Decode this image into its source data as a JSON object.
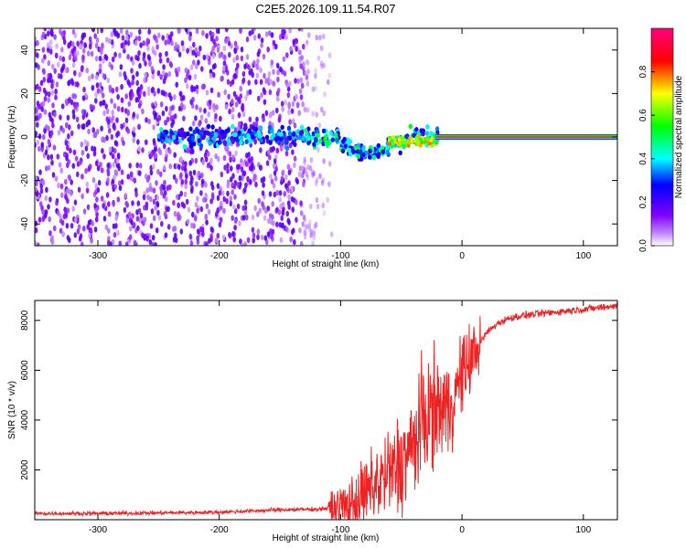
{
  "chart_data": [
    {
      "type": "heatmap",
      "title": "C2E5.2026.109.11.54.R07",
      "xlabel": "Height of straight line (km)",
      "ylabel": "Frequency (Hz)",
      "xlim": [
        -352,
        128
      ],
      "ylim": [
        -50,
        50
      ],
      "xticks": [
        -300,
        -200,
        -100,
        0,
        100
      ],
      "xtick_labels": [
        "-300",
        "-200",
        "-100",
        "0",
        "100"
      ],
      "yticks": [
        -40,
        -20,
        0,
        20,
        40
      ],
      "ytick_labels": [
        "-40",
        "-20",
        "0",
        "20",
        "40"
      ],
      "colorbar": {
        "label": "Normalized spectral amplitude",
        "range": [
          0,
          1
        ],
        "ticks": [
          0.0,
          0.2,
          0.4,
          0.6,
          0.8
        ],
        "tick_labels": [
          "0.0",
          "0.2",
          "0.4",
          "0.6",
          "0.8"
        ],
        "colormap": [
          "#ffffff",
          "#8000ff",
          "#0000ff",
          "#00ffff",
          "#00ff00",
          "#ffff00",
          "#ff0000",
          "#ff0080"
        ]
      },
      "features": {
        "noise_region_x": [
          -352,
          -105
        ],
        "strong_line_x": [
          -22,
          128
        ],
        "strong_line_freq": 0
      }
    },
    {
      "type": "line",
      "xlabel": "Height of straight line (km)",
      "ylabel": "SNR (10 * v/v)",
      "xlim": [
        -352,
        128
      ],
      "ylim": [
        0,
        8800
      ],
      "xticks": [
        -300,
        -200,
        -100,
        0,
        100
      ],
      "xtick_labels": [
        "-300",
        "-200",
        "-100",
        "0",
        "100"
      ],
      "yticks": [
        2000,
        4000,
        6000,
        8000
      ],
      "ytick_labels": [
        "2000",
        "4000",
        "6000",
        "8000"
      ],
      "series": [
        {
          "name": "SNR",
          "color": "#ee2222",
          "x": [
            -352,
            -300,
            -250,
            -200,
            -150,
            -120,
            -100,
            -90,
            -80,
            -70,
            -60,
            -50,
            -40,
            -30,
            -20,
            -10,
            0,
            10,
            20,
            30,
            40,
            50,
            60,
            70,
            80,
            90,
            100,
            110,
            120,
            128
          ],
          "y": [
            250,
            250,
            270,
            300,
            400,
            420,
            500,
            650,
            1000,
            1500,
            1800,
            2300,
            3000,
            4200,
            4500,
            4500,
            5800,
            6700,
            7500,
            7900,
            8100,
            8200,
            8250,
            8300,
            8350,
            8400,
            8450,
            8500,
            8550,
            8600
          ]
        }
      ]
    }
  ]
}
